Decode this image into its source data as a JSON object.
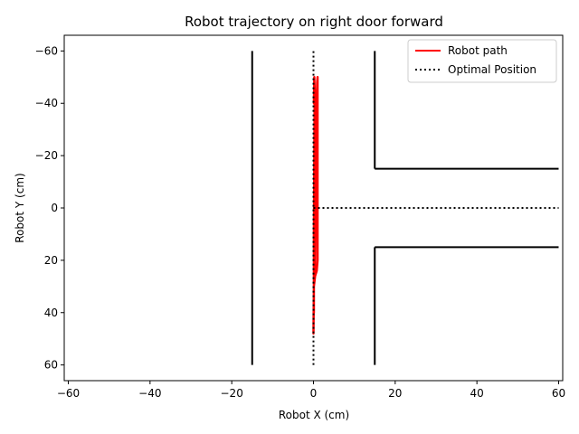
{
  "chart_data": {
    "type": "line",
    "title": "Robot trajectory on right door forward",
    "xlabel": "Robot X (cm)",
    "ylabel": "Robot Y (cm)",
    "xlim": [
      -61,
      61
    ],
    "ylim": [
      66,
      -66
    ],
    "y_inverted": true,
    "x_ticks": [
      -60,
      -40,
      -20,
      0,
      20,
      40,
      60
    ],
    "y_ticks": [
      -60,
      -40,
      -20,
      0,
      20,
      40,
      60
    ],
    "x_tick_labels": [
      "−60",
      "−40",
      "−20",
      "0",
      "20",
      "40",
      "60"
    ],
    "y_tick_labels": [
      "−60",
      "−40",
      "−20",
      "0",
      "20",
      "40",
      "60"
    ],
    "grid": false,
    "legend_position": "top-right",
    "series": [
      {
        "name": "Robot path",
        "color": "#ff0000",
        "style": "solid",
        "x": [
          0,
          0.1,
          0.4,
          0.8,
          1.0,
          1.0,
          1.0,
          1.0,
          1.0,
          0.9,
          0.8,
          0.6,
          0.5,
          0.4,
          0.3,
          0.2,
          0.1,
          0.1,
          0.1,
          0.2,
          0.3,
          0.2,
          0.1
        ],
        "y": [
          48,
          30,
          26,
          24,
          20,
          0,
          -20,
          -40,
          -50,
          -48,
          -40,
          -20,
          0,
          20,
          24,
          26,
          30,
          40,
          10,
          -20,
          -45,
          -50,
          -40
        ]
      },
      {
        "name": "Optimal Position",
        "color": "#000000",
        "style": "dotted",
        "segments": [
          {
            "x": [
              0,
              0
            ],
            "y": [
              60,
              -60
            ]
          },
          {
            "x": [
              0,
              60
            ],
            "y": [
              0,
              0
            ]
          }
        ]
      }
    ],
    "walls": {
      "color": "#000000",
      "segments": [
        {
          "x": [
            -15,
            -15
          ],
          "y": [
            60,
            -60
          ]
        },
        {
          "x": [
            15,
            15
          ],
          "y": [
            -60,
            -15
          ]
        },
        {
          "x": [
            15,
            60
          ],
          "y": [
            -15,
            -15
          ]
        },
        {
          "x": [
            15,
            15
          ],
          "y": [
            60,
            15
          ]
        },
        {
          "x": [
            15,
            60
          ],
          "y": [
            15,
            15
          ]
        }
      ]
    }
  }
}
